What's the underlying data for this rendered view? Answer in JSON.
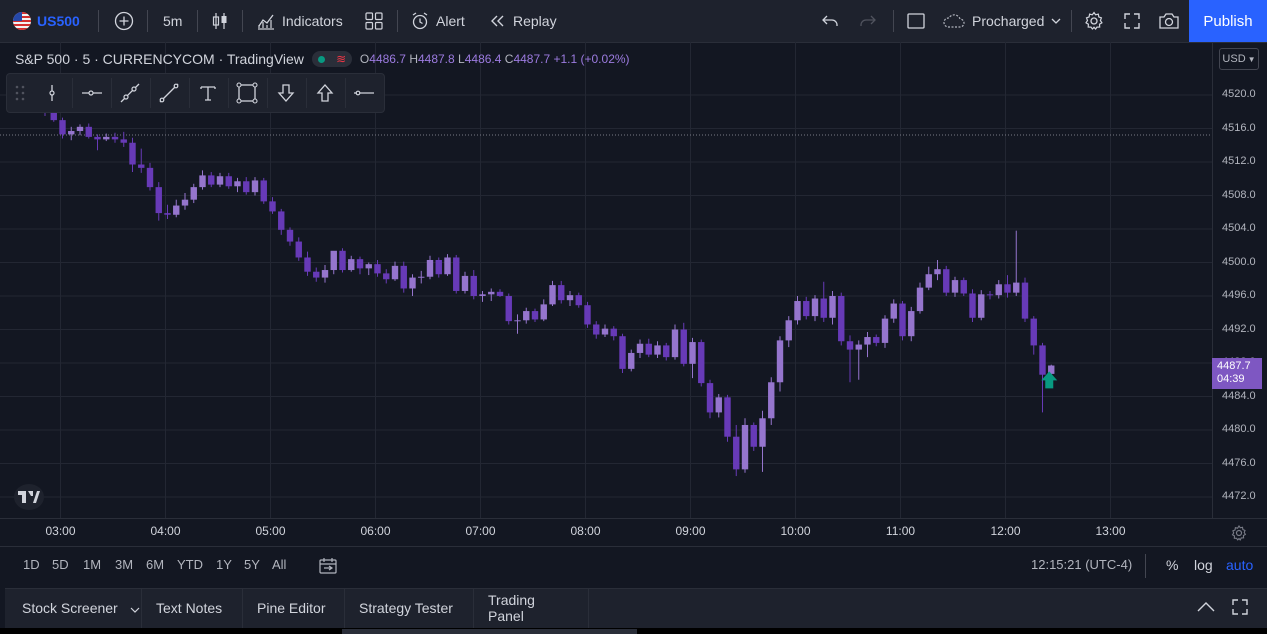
{
  "toolbar": {
    "symbol": "US500",
    "interval": "5m",
    "indicators_label": "Indicators",
    "alert_label": "Alert",
    "replay_label": "Replay",
    "layout_name": "Procharged",
    "publish_label": "Publish",
    "colors": {
      "accent": "#2962ff",
      "symbol": "#2962ff"
    }
  },
  "legend": {
    "title": "S&P 500 · 5 · CURRENCYCOM · TradingView",
    "open_label": "O",
    "open": "4486.7",
    "high_label": "H",
    "high": "4487.8",
    "low_label": "L",
    "low": "4486.4",
    "close_label": "C",
    "close": "4487.7",
    "change": "+1.1 (+0.02%)"
  },
  "price_scale": {
    "currency": "USD",
    "ticks": [
      "4520.0",
      "4516.0",
      "4512.0",
      "4508.0",
      "4504.0",
      "4500.0",
      "4496.0",
      "4492.0",
      "4488.0",
      "4484.0",
      "4480.0",
      "4476.0",
      "4472.0"
    ],
    "last_price": "4487.7",
    "countdown": "04:39"
  },
  "time_axis": {
    "ticks": [
      "03:00",
      "04:00",
      "05:00",
      "06:00",
      "07:00",
      "08:00",
      "09:00",
      "10:00",
      "11:00",
      "12:00",
      "13:00"
    ]
  },
  "range_bar": {
    "ranges": [
      "1D",
      "5D",
      "1M",
      "3M",
      "6M",
      "YTD",
      "1Y",
      "5Y",
      "All"
    ],
    "clock": "12:15:21 (UTC-4)",
    "percent_label": "%",
    "log_label": "log",
    "auto_label": "auto"
  },
  "bottom_tabs": [
    "Stock Screener",
    "Text Notes",
    "Pine Editor",
    "Strategy Tester",
    "Trading Panel"
  ],
  "drawing_tools": [
    "drag-handle-icon",
    "vertical-line-icon",
    "horizontal-ray-icon",
    "trend-line-icon",
    "extended-line-icon",
    "text-icon",
    "rectangle-icon",
    "arrow-down-icon",
    "arrow-up-icon",
    "horizontal-line-icon"
  ],
  "chart_data": {
    "type": "candlestick",
    "up_color": "#9575cd",
    "down_color": "#673ab7",
    "signal_color": "#089981",
    "ylim": [
      4470,
      4522
    ],
    "candles": [
      [
        4519.0,
        4519.6,
        4517.5,
        4518.2
      ],
      [
        4518.2,
        4518.5,
        4516.8,
        4517.0
      ],
      [
        4517.0,
        4517.3,
        4514.8,
        4515.3
      ],
      [
        4515.3,
        4516.2,
        4514.6,
        4515.7
      ],
      [
        4515.7,
        4516.5,
        4515.2,
        4516.2
      ],
      [
        4516.2,
        4516.6,
        4514.8,
        4515.0
      ],
      [
        4515.0,
        4515.3,
        4513.4,
        4514.7
      ],
      [
        4514.7,
        4515.4,
        4514.5,
        4515.0
      ],
      [
        4515.0,
        4515.5,
        4514.3,
        4514.7
      ],
      [
        4514.7,
        4515.6,
        4513.8,
        4514.3
      ],
      [
        4514.3,
        4514.9,
        4510.8,
        4511.7
      ],
      [
        4511.7,
        4513.6,
        4510.7,
        4511.3
      ],
      [
        4511.3,
        4511.9,
        4508.6,
        4509.0
      ],
      [
        4509.0,
        4509.6,
        4505.0,
        4505.9
      ],
      [
        4505.9,
        4506.9,
        4505.2,
        4505.7
      ],
      [
        4505.7,
        4507.5,
        4505.4,
        4506.8
      ],
      [
        4506.8,
        4508.3,
        4506.3,
        4507.5
      ],
      [
        4507.5,
        4509.4,
        4507.1,
        4509.0
      ],
      [
        4509.0,
        4511.0,
        4508.7,
        4510.4
      ],
      [
        4510.4,
        4510.8,
        4509.0,
        4509.3
      ],
      [
        4509.3,
        4510.7,
        4509.0,
        4510.3
      ],
      [
        4510.3,
        4510.7,
        4508.8,
        4509.1
      ],
      [
        4509.1,
        4510.1,
        4508.4,
        4509.7
      ],
      [
        4509.7,
        4510.2,
        4508.1,
        4508.4
      ],
      [
        4508.4,
        4510.2,
        4508.0,
        4509.8
      ],
      [
        4509.8,
        4510.1,
        4507.0,
        4507.3
      ],
      [
        4507.3,
        4507.8,
        4505.8,
        4506.1
      ],
      [
        4506.1,
        4506.4,
        4503.3,
        4503.9
      ],
      [
        4503.9,
        4504.2,
        4502.0,
        4502.5
      ],
      [
        4502.5,
        4503.0,
        4500.2,
        4500.6
      ],
      [
        4500.6,
        4501.3,
        4498.4,
        4498.9
      ],
      [
        4498.9,
        4499.4,
        4497.7,
        4498.2
      ],
      [
        4498.2,
        4499.7,
        4497.6,
        4499.1
      ],
      [
        4499.1,
        4501.0,
        4498.6,
        4501.4
      ],
      [
        4501.4,
        4501.7,
        4498.8,
        4499.1
      ],
      [
        4499.1,
        4500.8,
        4498.9,
        4500.4
      ],
      [
        4500.4,
        4500.7,
        4498.6,
        4499.3
      ],
      [
        4499.3,
        4500.0,
        4498.5,
        4499.8
      ],
      [
        4499.8,
        4500.3,
        4498.3,
        4498.7
      ],
      [
        4498.7,
        4499.2,
        4497.5,
        4498.0
      ],
      [
        4498.0,
        4500.1,
        4497.8,
        4499.6
      ],
      [
        4499.6,
        4500.1,
        4496.4,
        4496.9
      ],
      [
        4496.9,
        4498.6,
        4496.0,
        4498.2
      ],
      [
        4498.2,
        4499.0,
        4497.5,
        4498.3
      ],
      [
        4498.3,
        4500.8,
        4498.0,
        4500.3
      ],
      [
        4500.3,
        4500.6,
        4498.2,
        4498.6
      ],
      [
        4498.6,
        4501.0,
        4498.4,
        4500.6
      ],
      [
        4500.6,
        4500.9,
        4496.3,
        4496.6
      ],
      [
        4496.6,
        4498.9,
        4496.3,
        4498.4
      ],
      [
        4498.4,
        4499.1,
        4495.6,
        4496.0
      ],
      [
        4496.0,
        4496.6,
        4495.3,
        4496.2
      ],
      [
        4496.2,
        4496.9,
        4495.4,
        4496.5
      ],
      [
        4496.5,
        4496.8,
        4495.9,
        4496.0
      ],
      [
        4496.0,
        4496.3,
        4492.6,
        4493.0
      ],
      [
        4493.0,
        4493.8,
        4491.5,
        4493.1
      ],
      [
        4493.1,
        4494.6,
        4492.7,
        4494.2
      ],
      [
        4494.2,
        4494.5,
        4492.9,
        4493.2
      ],
      [
        4493.2,
        4495.6,
        4493.0,
        4495.0
      ],
      [
        4495.0,
        4497.8,
        4494.8,
        4497.3
      ],
      [
        4497.3,
        4497.8,
        4495.1,
        4495.5
      ],
      [
        4495.5,
        4496.6,
        4494.8,
        4496.1
      ],
      [
        4496.1,
        4496.4,
        4494.6,
        4494.9
      ],
      [
        4494.9,
        4495.3,
        4492.2,
        4492.6
      ],
      [
        4492.6,
        4493.0,
        4490.9,
        4491.4
      ],
      [
        4491.4,
        4492.6,
        4491.1,
        4492.1
      ],
      [
        4492.1,
        4492.4,
        4490.7,
        4491.2
      ],
      [
        4491.2,
        4491.5,
        4486.8,
        4487.3
      ],
      [
        4487.3,
        4489.6,
        4487.0,
        4489.2
      ],
      [
        4489.2,
        4490.8,
        4488.6,
        4490.3
      ],
      [
        4490.3,
        4490.9,
        4488.7,
        4489.0
      ],
      [
        4489.0,
        4490.6,
        4488.6,
        4490.1
      ],
      [
        4490.1,
        4490.4,
        4488.3,
        4488.7
      ],
      [
        4488.7,
        4492.6,
        4488.4,
        4492.0
      ],
      [
        4492.0,
        4492.8,
        4487.6,
        4487.9
      ],
      [
        4487.9,
        4491.0,
        4486.2,
        4490.5
      ],
      [
        4490.5,
        4490.8,
        4485.2,
        4485.6
      ],
      [
        4485.6,
        4486.0,
        4481.4,
        4482.1
      ],
      [
        4482.1,
        4484.3,
        4481.5,
        4483.9
      ],
      [
        4483.9,
        4484.2,
        4478.6,
        4479.2
      ],
      [
        4479.2,
        4480.6,
        4474.5,
        4475.3
      ],
      [
        4475.3,
        4481.4,
        4474.9,
        4480.6
      ],
      [
        4480.6,
        4480.9,
        4477.5,
        4478.0
      ],
      [
        4478.0,
        4482.3,
        4475.0,
        4481.4
      ],
      [
        4481.4,
        4486.3,
        4480.6,
        4485.7
      ],
      [
        4485.7,
        4491.2,
        4484.6,
        4490.7
      ],
      [
        4490.7,
        4493.6,
        4489.9,
        4493.1
      ],
      [
        4493.1,
        4496.0,
        4492.6,
        4495.4
      ],
      [
        4495.4,
        4495.9,
        4493.2,
        4493.6
      ],
      [
        4493.6,
        4496.1,
        4493.0,
        4495.7
      ],
      [
        4495.7,
        4497.7,
        4492.9,
        4493.4
      ],
      [
        4493.4,
        4496.6,
        4492.6,
        4496.0
      ],
      [
        4496.0,
        4496.4,
        4490.1,
        4490.6
      ],
      [
        4490.6,
        4491.3,
        4485.7,
        4489.6
      ],
      [
        4489.6,
        4490.7,
        4486.0,
        4490.2
      ],
      [
        4490.2,
        4491.7,
        4488.7,
        4491.1
      ],
      [
        4491.1,
        4491.4,
        4490.0,
        4490.4
      ],
      [
        4490.4,
        4493.7,
        4489.8,
        4493.3
      ],
      [
        4493.3,
        4495.6,
        4492.8,
        4495.1
      ],
      [
        4495.1,
        4495.4,
        4490.7,
        4491.2
      ],
      [
        4491.2,
        4494.7,
        4490.6,
        4494.2
      ],
      [
        4494.2,
        4497.6,
        4493.9,
        4497.0
      ],
      [
        4497.0,
        4499.5,
        4496.7,
        4498.6
      ],
      [
        4498.6,
        4500.3,
        4497.9,
        4499.2
      ],
      [
        4499.2,
        4499.6,
        4496.0,
        4496.4
      ],
      [
        4496.4,
        4498.3,
        4495.9,
        4497.9
      ],
      [
        4497.9,
        4498.2,
        4496.0,
        4496.3
      ],
      [
        4496.3,
        4496.8,
        4492.9,
        4493.4
      ],
      [
        4493.4,
        4496.7,
        4493.1,
        4496.2
      ],
      [
        4496.2,
        4496.6,
        4495.6,
        4496.1
      ],
      [
        4496.1,
        4497.9,
        4495.7,
        4497.4
      ],
      [
        4497.4,
        4498.5,
        4495.8,
        4496.4
      ],
      [
        4496.4,
        4503.8,
        4496.0,
        4497.6
      ],
      [
        4497.6,
        4498.2,
        4492.9,
        4493.3
      ],
      [
        4493.3,
        4493.6,
        4489.0,
        4490.1
      ],
      [
        4490.1,
        4490.4,
        4482.1,
        4486.6
      ],
      [
        4486.7,
        4487.8,
        4486.4,
        4487.7
      ]
    ]
  }
}
